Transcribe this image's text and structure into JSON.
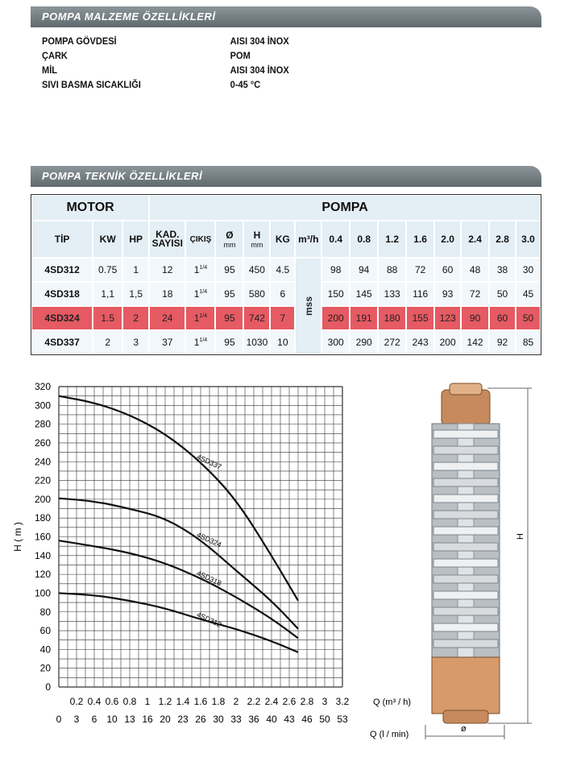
{
  "materials": {
    "title": "POMPA MALZEME ÖZELLİKLERİ",
    "rows": [
      {
        "label": "POMPA GÖVDESİ",
        "value": "AISI 304 İNOX"
      },
      {
        "label": "ÇARK",
        "value": "POM"
      },
      {
        "label": "MİL",
        "value": "AISI 304 İNOX"
      },
      {
        "label": "SIVI BASMA SICAKLIĞI",
        "value": "0-45 °C"
      }
    ]
  },
  "technical": {
    "title": "POMPA TEKNİK ÖZELLİKLERİ",
    "group_motor": "MOTOR",
    "group_pump": "POMPA",
    "headers": {
      "tip": "TİP",
      "kw": "KW",
      "hp": "HP",
      "kad1": "KAD.",
      "kad2": "SAYISI",
      "cikis": "ÇIKIŞ",
      "dia": "Ø",
      "dia_unit": "mm",
      "h": "H",
      "h_unit": "mm",
      "kg": "KG",
      "flow_unit": "m³/h",
      "flows": [
        "0.4",
        "0.8",
        "1.2",
        "1.6",
        "2.0",
        "2.4",
        "2.8",
        "3.0"
      ]
    },
    "head_unit_label": "mss",
    "rows": [
      {
        "tip": "4SD312",
        "kw": "0.75",
        "hp": "1",
        "kad": "12",
        "cikis_base": "1",
        "cikis_sup": "1/4",
        "dia": "95",
        "h": "450",
        "kg": "4.5",
        "flows": [
          "98",
          "94",
          "88",
          "72",
          "60",
          "48",
          "38",
          "30"
        ],
        "highlight": false
      },
      {
        "tip": "4SD318",
        "kw": "1,1",
        "hp": "1,5",
        "kad": "18",
        "cikis_base": "1",
        "cikis_sup": "1/4",
        "dia": "95",
        "h": "580",
        "kg": "6",
        "flows": [
          "150",
          "145",
          "133",
          "116",
          "93",
          "72",
          "50",
          "45"
        ],
        "highlight": false
      },
      {
        "tip": "4SD324",
        "kw": "1.5",
        "hp": "2",
        "kad": "24",
        "cikis_base": "1",
        "cikis_sup": "1/4",
        "dia": "95",
        "h": "742",
        "kg": "7",
        "flows": [
          "200",
          "191",
          "180",
          "155",
          "123",
          "90",
          "60",
          "50"
        ],
        "highlight": true
      },
      {
        "tip": "4SD337",
        "kw": "2",
        "hp": "3",
        "kad": "37",
        "cikis_base": "1",
        "cikis_sup": "1/4",
        "dia": "95",
        "h": "1030",
        "kg": "10",
        "flows": [
          "300",
          "290",
          "272",
          "243",
          "200",
          "142",
          "92",
          "85"
        ],
        "highlight": false
      }
    ]
  },
  "chart_data": {
    "type": "line",
    "ylabel": "H ( m )",
    "xlabel_top": "Q (m³ / h)",
    "xlabel_bottom": "Q (l / min)",
    "ylim": [
      0,
      320
    ],
    "yticks": [
      0,
      20,
      40,
      60,
      80,
      100,
      120,
      140,
      160,
      180,
      200,
      220,
      240,
      260,
      280,
      300,
      320
    ],
    "xlim": [
      0,
      3.2
    ],
    "xticks_m3h": [
      "0.2",
      "0.4",
      "0.6",
      "0.8",
      "1",
      "1.2",
      "1.4",
      "1.6",
      "1.8",
      "2",
      "2.2",
      "2.4",
      "2.6",
      "2.8",
      "3",
      "3.2"
    ],
    "xticks_lmin": [
      "0",
      "3",
      "6",
      "10",
      "13",
      "16",
      "20",
      "23",
      "26",
      "30",
      "33",
      "36",
      "40",
      "43",
      "46",
      "50",
      "53"
    ],
    "grid": true,
    "series": [
      {
        "name": "4SD337",
        "x": [
          0,
          0.4,
          0.8,
          1.2,
          1.6,
          2.0,
          2.4,
          2.7
        ],
        "y": [
          310,
          303,
          290,
          270,
          240,
          200,
          140,
          92
        ]
      },
      {
        "name": "4SD324",
        "x": [
          0,
          0.4,
          0.8,
          1.2,
          1.6,
          2.0,
          2.4,
          2.7
        ],
        "y": [
          201,
          198,
          190,
          180,
          157,
          124,
          92,
          62
        ]
      },
      {
        "name": "4SD318",
        "x": [
          0,
          0.4,
          0.8,
          1.2,
          1.6,
          2.0,
          2.4,
          2.7
        ],
        "y": [
          156,
          150,
          143,
          132,
          116,
          96,
          73,
          52
        ]
      },
      {
        "name": "4SD312",
        "x": [
          0,
          0.4,
          0.8,
          1.2,
          1.6,
          2.0,
          2.4,
          2.7
        ],
        "y": [
          100,
          98,
          92,
          84,
          72,
          62,
          49,
          37
        ]
      }
    ]
  },
  "pump_drawing": {
    "height_label": "H",
    "diameter_label": "ø"
  }
}
